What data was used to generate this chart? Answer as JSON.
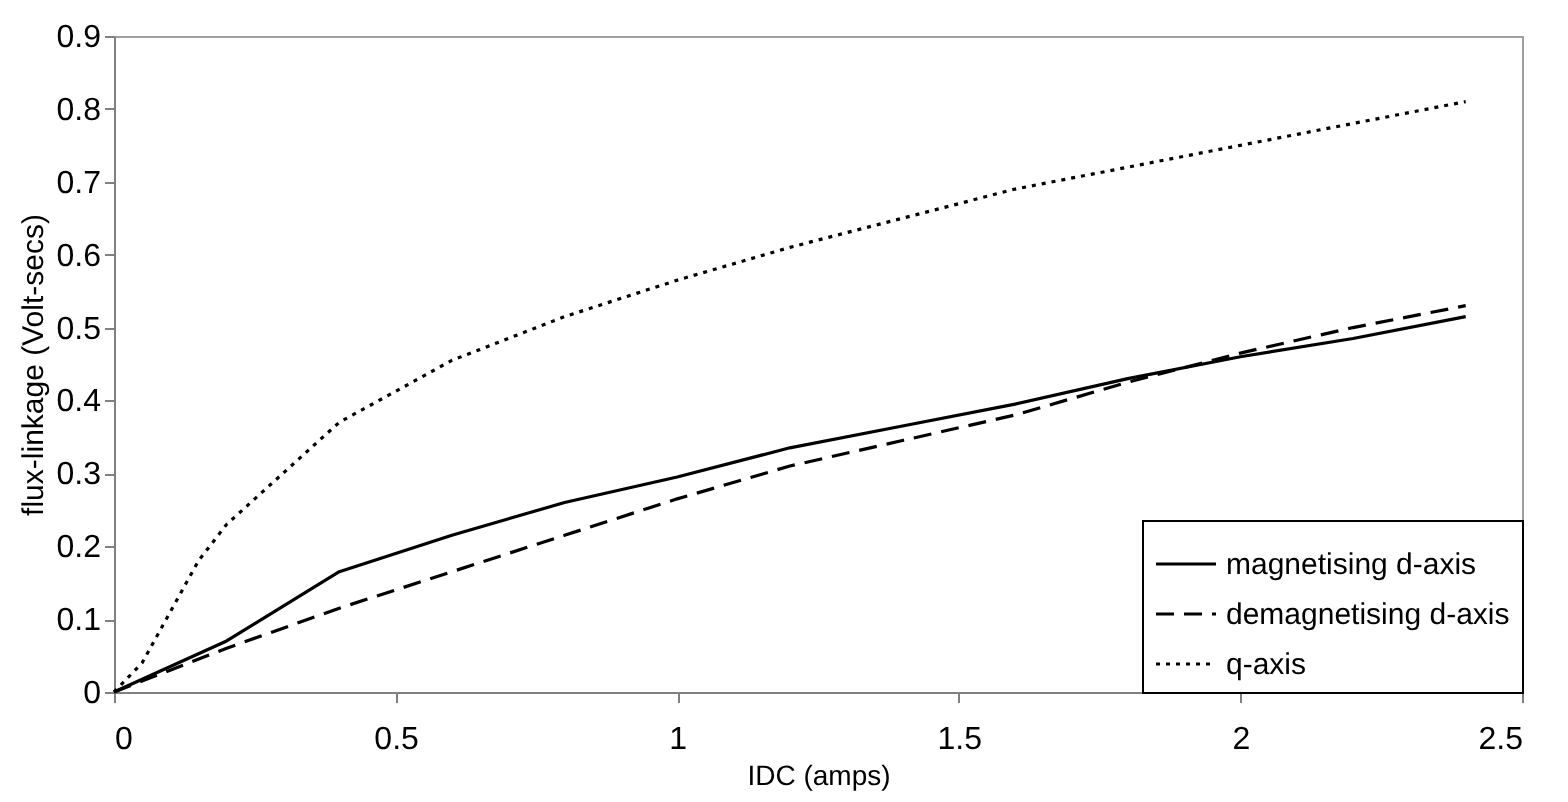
{
  "chart_data": {
    "type": "line",
    "xlabel": "IDC (amps)",
    "ylabel": "flux-linkage (Volt-secs)",
    "xlim": [
      0,
      2.5
    ],
    "xticks": [
      0,
      0.5,
      1,
      1.5,
      2,
      2.5
    ],
    "ylim": [
      0,
      0.9
    ],
    "yticks": [
      0,
      0.1,
      0.2,
      0.3,
      0.4,
      0.5,
      0.6,
      0.7,
      0.8,
      0.9
    ],
    "grid": false,
    "legend": "bottom right",
    "marker": "none",
    "series": [
      {
        "name": "magnetising d-axis",
        "color": "#000000",
        "line_style": "solid",
        "x": [
          0,
          0.2,
          0.4,
          0.6,
          0.8,
          1.0,
          1.2,
          1.4,
          1.6,
          1.8,
          2.0,
          2.2,
          2.4
        ],
        "values": [
          0,
          0.07,
          0.165,
          0.215,
          0.26,
          0.295,
          0.335,
          0.365,
          0.395,
          0.43,
          0.46,
          0.485,
          0.515
        ]
      },
      {
        "name": "demagnetising d-axis",
        "color": "#000000",
        "line_style": "dashed",
        "x": [
          0,
          0.2,
          0.4,
          0.6,
          0.8,
          1.0,
          1.2,
          1.4,
          1.6,
          1.8,
          2.0,
          2.2,
          2.4
        ],
        "values": [
          0,
          0.06,
          0.115,
          0.165,
          0.215,
          0.265,
          0.31,
          0.345,
          0.38,
          0.425,
          0.465,
          0.5,
          0.53
        ]
      },
      {
        "name": "q-axis",
        "color": "#000000",
        "line_style": "dotted",
        "x": [
          0,
          0.05,
          0.15,
          0.2,
          0.3,
          0.4,
          0.6,
          0.8,
          1.0,
          1.2,
          1.4,
          1.6,
          1.8,
          2.0,
          2.2,
          2.4
        ],
        "values": [
          0,
          0.04,
          0.18,
          0.23,
          0.3,
          0.37,
          0.455,
          0.515,
          0.565,
          0.61,
          0.65,
          0.69,
          0.72,
          0.75,
          0.78,
          0.81
        ]
      }
    ]
  }
}
